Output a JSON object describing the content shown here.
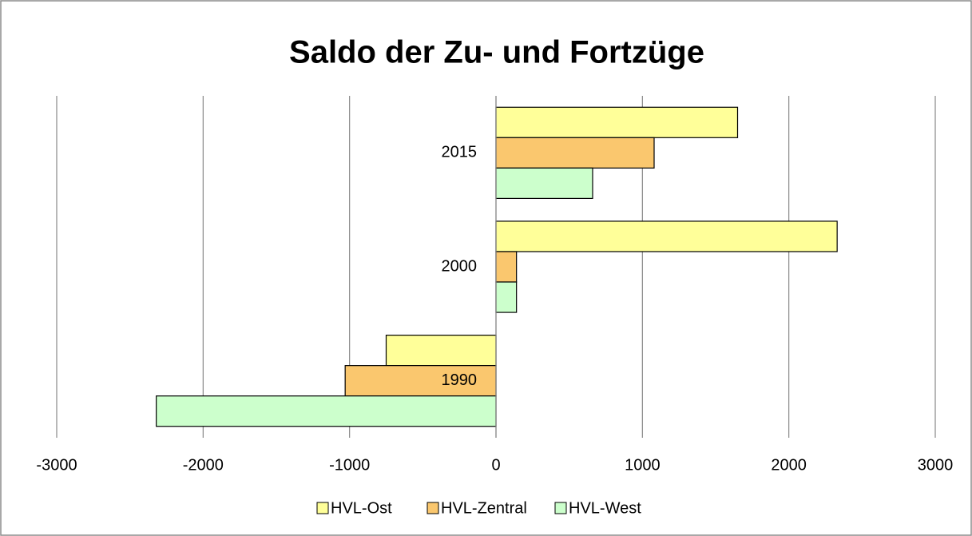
{
  "chart_data": {
    "type": "hbar",
    "title": "Saldo der Zu- und Fortzüge",
    "categories": [
      "1990",
      "2000",
      "2015"
    ],
    "series": [
      {
        "name": "HVL-Ost",
        "color": "#ffff99",
        "values": [
          -750,
          2330,
          1650
        ]
      },
      {
        "name": "HVL-Zentral",
        "color": "#fac76e",
        "values": [
          -1030,
          140,
          1080
        ]
      },
      {
        "name": "HVL-West",
        "color": "#ccffcc",
        "values": [
          -2320,
          140,
          660
        ]
      }
    ],
    "xlim": [
      -3000,
      3000
    ],
    "xticks": [
      -3000,
      -2000,
      -1000,
      0,
      1000,
      2000,
      3000
    ],
    "grid": true,
    "legend": "bottom"
  }
}
